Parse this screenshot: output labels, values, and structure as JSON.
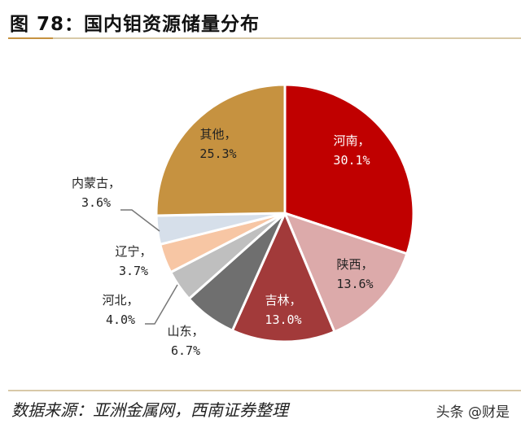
{
  "title": "图 78：国内钼资源储量分布",
  "source": "数据来源：亚洲金属网，西南证券整理",
  "watermark": "头条 @财是",
  "chart_data": {
    "type": "pie",
    "title": "图 78：国内钼资源储量分布",
    "start": "12 o'clock, clockwise",
    "slices": [
      {
        "name": "河南",
        "value": 30.1,
        "label": "30.1%",
        "color": "#c00000"
      },
      {
        "name": "陕西",
        "value": 13.6,
        "label": "13.6%",
        "color": "#dcaaaa"
      },
      {
        "name": "吉林",
        "value": 13.0,
        "label": "13.0%",
        "color": "#a23a3a"
      },
      {
        "name": "山东",
        "value": 6.7,
        "label": "6.7%",
        "color": "#6f6f6f"
      },
      {
        "name": "河北",
        "value": 4.0,
        "label": "4.0%",
        "color": "#bfbfbf"
      },
      {
        "name": "辽宁",
        "value": 3.7,
        "label": "3.7%",
        "color": "#f7c6a4"
      },
      {
        "name": "内蒙古",
        "value": 3.6,
        "label": "3.6%",
        "color": "#d6dfea"
      },
      {
        "name": "其他",
        "value": 25.3,
        "label": "25.3%",
        "color": "#c69240"
      }
    ]
  }
}
